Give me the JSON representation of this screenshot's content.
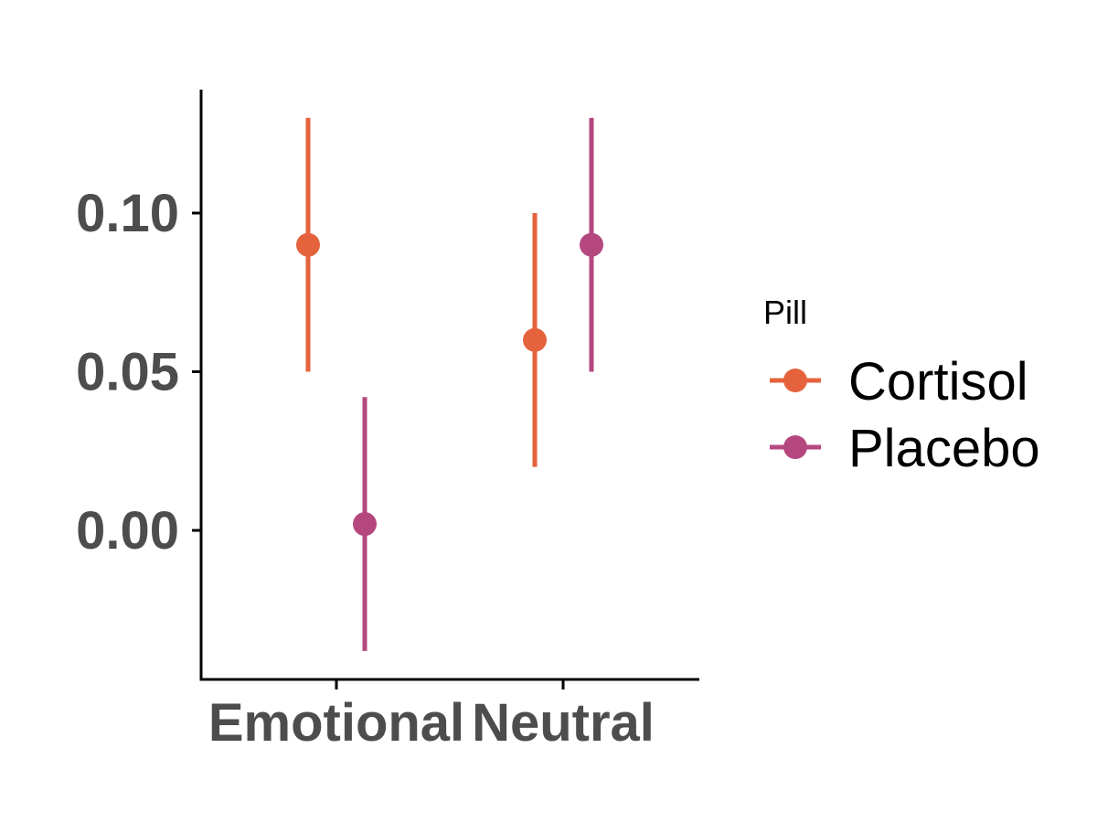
{
  "chart_data": {
    "type": "scatter",
    "subtype": "point-with-error-bars",
    "categories": [
      "Emotional",
      "Neutral"
    ],
    "y_ticks": [
      "0.00",
      "0.05",
      "0.10"
    ],
    "y_tick_values": [
      0.0,
      0.05,
      0.1
    ],
    "ylim": [
      -0.047,
      0.14
    ],
    "grid": false,
    "legend": {
      "title": "Pill",
      "placement": "right"
    },
    "series": [
      {
        "name": "Cortisol",
        "color": "#E4633D",
        "values": [
          0.09,
          0.06
        ],
        "lower": [
          0.05,
          0.02
        ],
        "upper": [
          0.13,
          0.1
        ]
      },
      {
        "name": "Placebo",
        "color": "#B5477F",
        "values": [
          0.002,
          0.09
        ],
        "lower": [
          -0.038,
          0.05
        ],
        "upper": [
          0.042,
          0.13
        ]
      }
    ]
  }
}
